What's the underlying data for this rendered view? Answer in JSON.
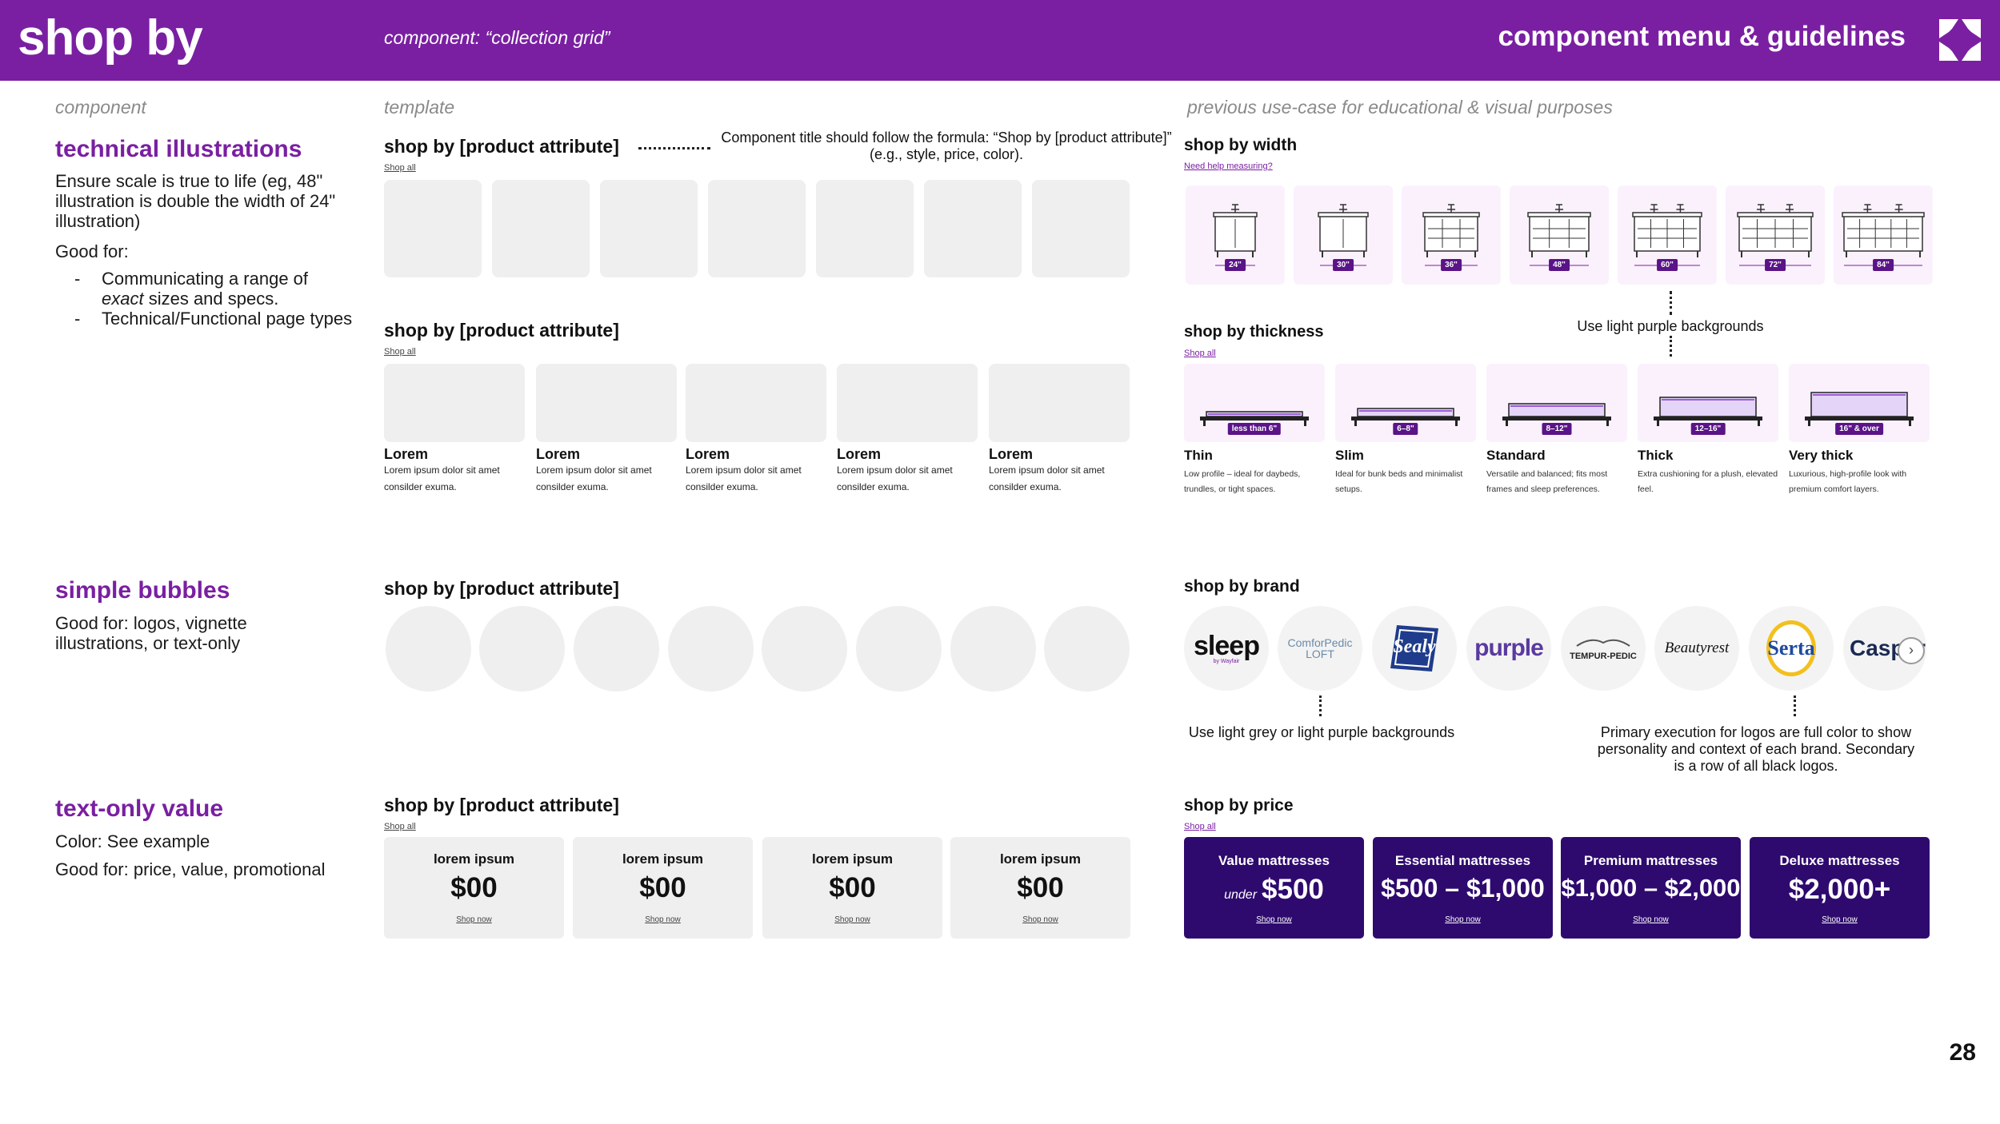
{
  "header": {
    "brand": "shop by",
    "component": "component: “collection grid”",
    "menu": "component menu & guidelines"
  },
  "columns": {
    "component": "component",
    "template": "template",
    "previous": "previous use-case for educational & visual purposes"
  },
  "technical": {
    "title": "technical illustrations",
    "desc": "Ensure scale is true to life (eg, 48\" illustration is double the width of 24\" illustration)",
    "good_for": "Good for:",
    "bullet1_a": "Communicating a range of",
    "bullet1_b_em": "exact",
    "bullet1_c": " sizes and specs.",
    "bullet2": "Technical/Functional page types",
    "tpl_title": "shop by [product attribute]",
    "tpl_shopall": "Shop all",
    "formula_note": "Component title should follow the formula: “Shop by [product attribute]” (e.g., style, price, color).",
    "tpl2_title": "shop by [product attribute]",
    "tpl2_shopall": "Shop all",
    "tpl2_items": [
      {
        "title": "Lorem",
        "desc": "Lorem ipsum dolor sit amet consilder exuma."
      },
      {
        "title": "Lorem",
        "desc": "Lorem ipsum dolor sit amet consilder exuma."
      },
      {
        "title": "Lorem",
        "desc": "Lorem ipsum dolor sit amet consilder exuma."
      },
      {
        "title": "Lorem",
        "desc": "Lorem ipsum dolor sit amet consilder exuma."
      },
      {
        "title": "Lorem",
        "desc": "Lorem ipsum dolor sit amet consilder exuma."
      }
    ],
    "width_title": "shop by width",
    "width_link": "Need help measuring?",
    "widths": [
      "24\"",
      "30\"",
      "36\"",
      "48\"",
      "60\"",
      "72\"",
      "84\""
    ],
    "width_note": "Use light purple backgrounds",
    "thickness_title": "shop by thickness",
    "thickness_shopall": "Shop all",
    "thickness": [
      {
        "badge": "less than 6\"",
        "title": "Thin",
        "desc": "Low profile – ideal for daybeds, trundles, or tight spaces."
      },
      {
        "badge": "6–8\"",
        "title": "Slim",
        "desc": "Ideal for bunk beds and minimalist setups."
      },
      {
        "badge": "8–12\"",
        "title": "Standard",
        "desc": "Versatile and balanced; fits most frames and sleep preferences."
      },
      {
        "badge": "12–16\"",
        "title": "Thick",
        "desc": "Extra cushioning for a plush, elevated feel."
      },
      {
        "badge": "16\" & over",
        "title": "Very thick",
        "desc": "Luxurious, high-profile look with premium comfort layers."
      }
    ]
  },
  "bubbles": {
    "title": "simple bubbles",
    "desc": "Good for: logos, vignette illustrations, or text-only",
    "tpl_title": "shop by [product attribute]",
    "brand_title": "shop by brand",
    "brands": [
      "sleep",
      "ComforPedic LOFT",
      "Sealy",
      "purple",
      "TEMPUR-PEDIC",
      "Beautyrest",
      "Serta",
      "Casper"
    ],
    "sleep_sub": "by Wayfair",
    "note_left": "Use light grey or light purple  backgrounds",
    "note_right": "Primary execution for logos are full color to show personality and context of each brand. Secondary is a row of all black logos."
  },
  "textonly": {
    "title": "text-only value",
    "color": "Color: See example",
    "good_for": "Good for: price, value, promotional",
    "tpl_title": "shop by [product attribute]",
    "tpl_shopall": "Shop all",
    "tpl_tiles": [
      {
        "label": "lorem ipsum",
        "value": "$00",
        "link": "Shop now"
      },
      {
        "label": "lorem ipsum",
        "value": "$00",
        "link": "Shop now"
      },
      {
        "label": "lorem ipsum",
        "value": "$00",
        "link": "Shop now"
      },
      {
        "label": "lorem ipsum",
        "value": "$00",
        "link": "Shop now"
      }
    ],
    "price_title": "shop by price",
    "price_shopall": "Shop all",
    "price_tiles": [
      {
        "label": "Value mattresses",
        "prefix": "under",
        "value": "$500",
        "link": "Shop now"
      },
      {
        "label": "Essential mattresses",
        "prefix": "",
        "value": "$500 – $1,000",
        "link": "Shop now"
      },
      {
        "label": "Premium mattresses",
        "prefix": "",
        "value": "$1,000 – $2,000",
        "link": "Shop now"
      },
      {
        "label": "Deluxe mattresses",
        "prefix": "",
        "value": "$2,000+",
        "link": "Shop now"
      }
    ]
  },
  "colors": {
    "brand_purple": "#7a1fa2",
    "deep_purple": "#2e0a6e",
    "light_purple": "#fbf1fd",
    "light_grey": "#efefef"
  },
  "page_number": "28"
}
